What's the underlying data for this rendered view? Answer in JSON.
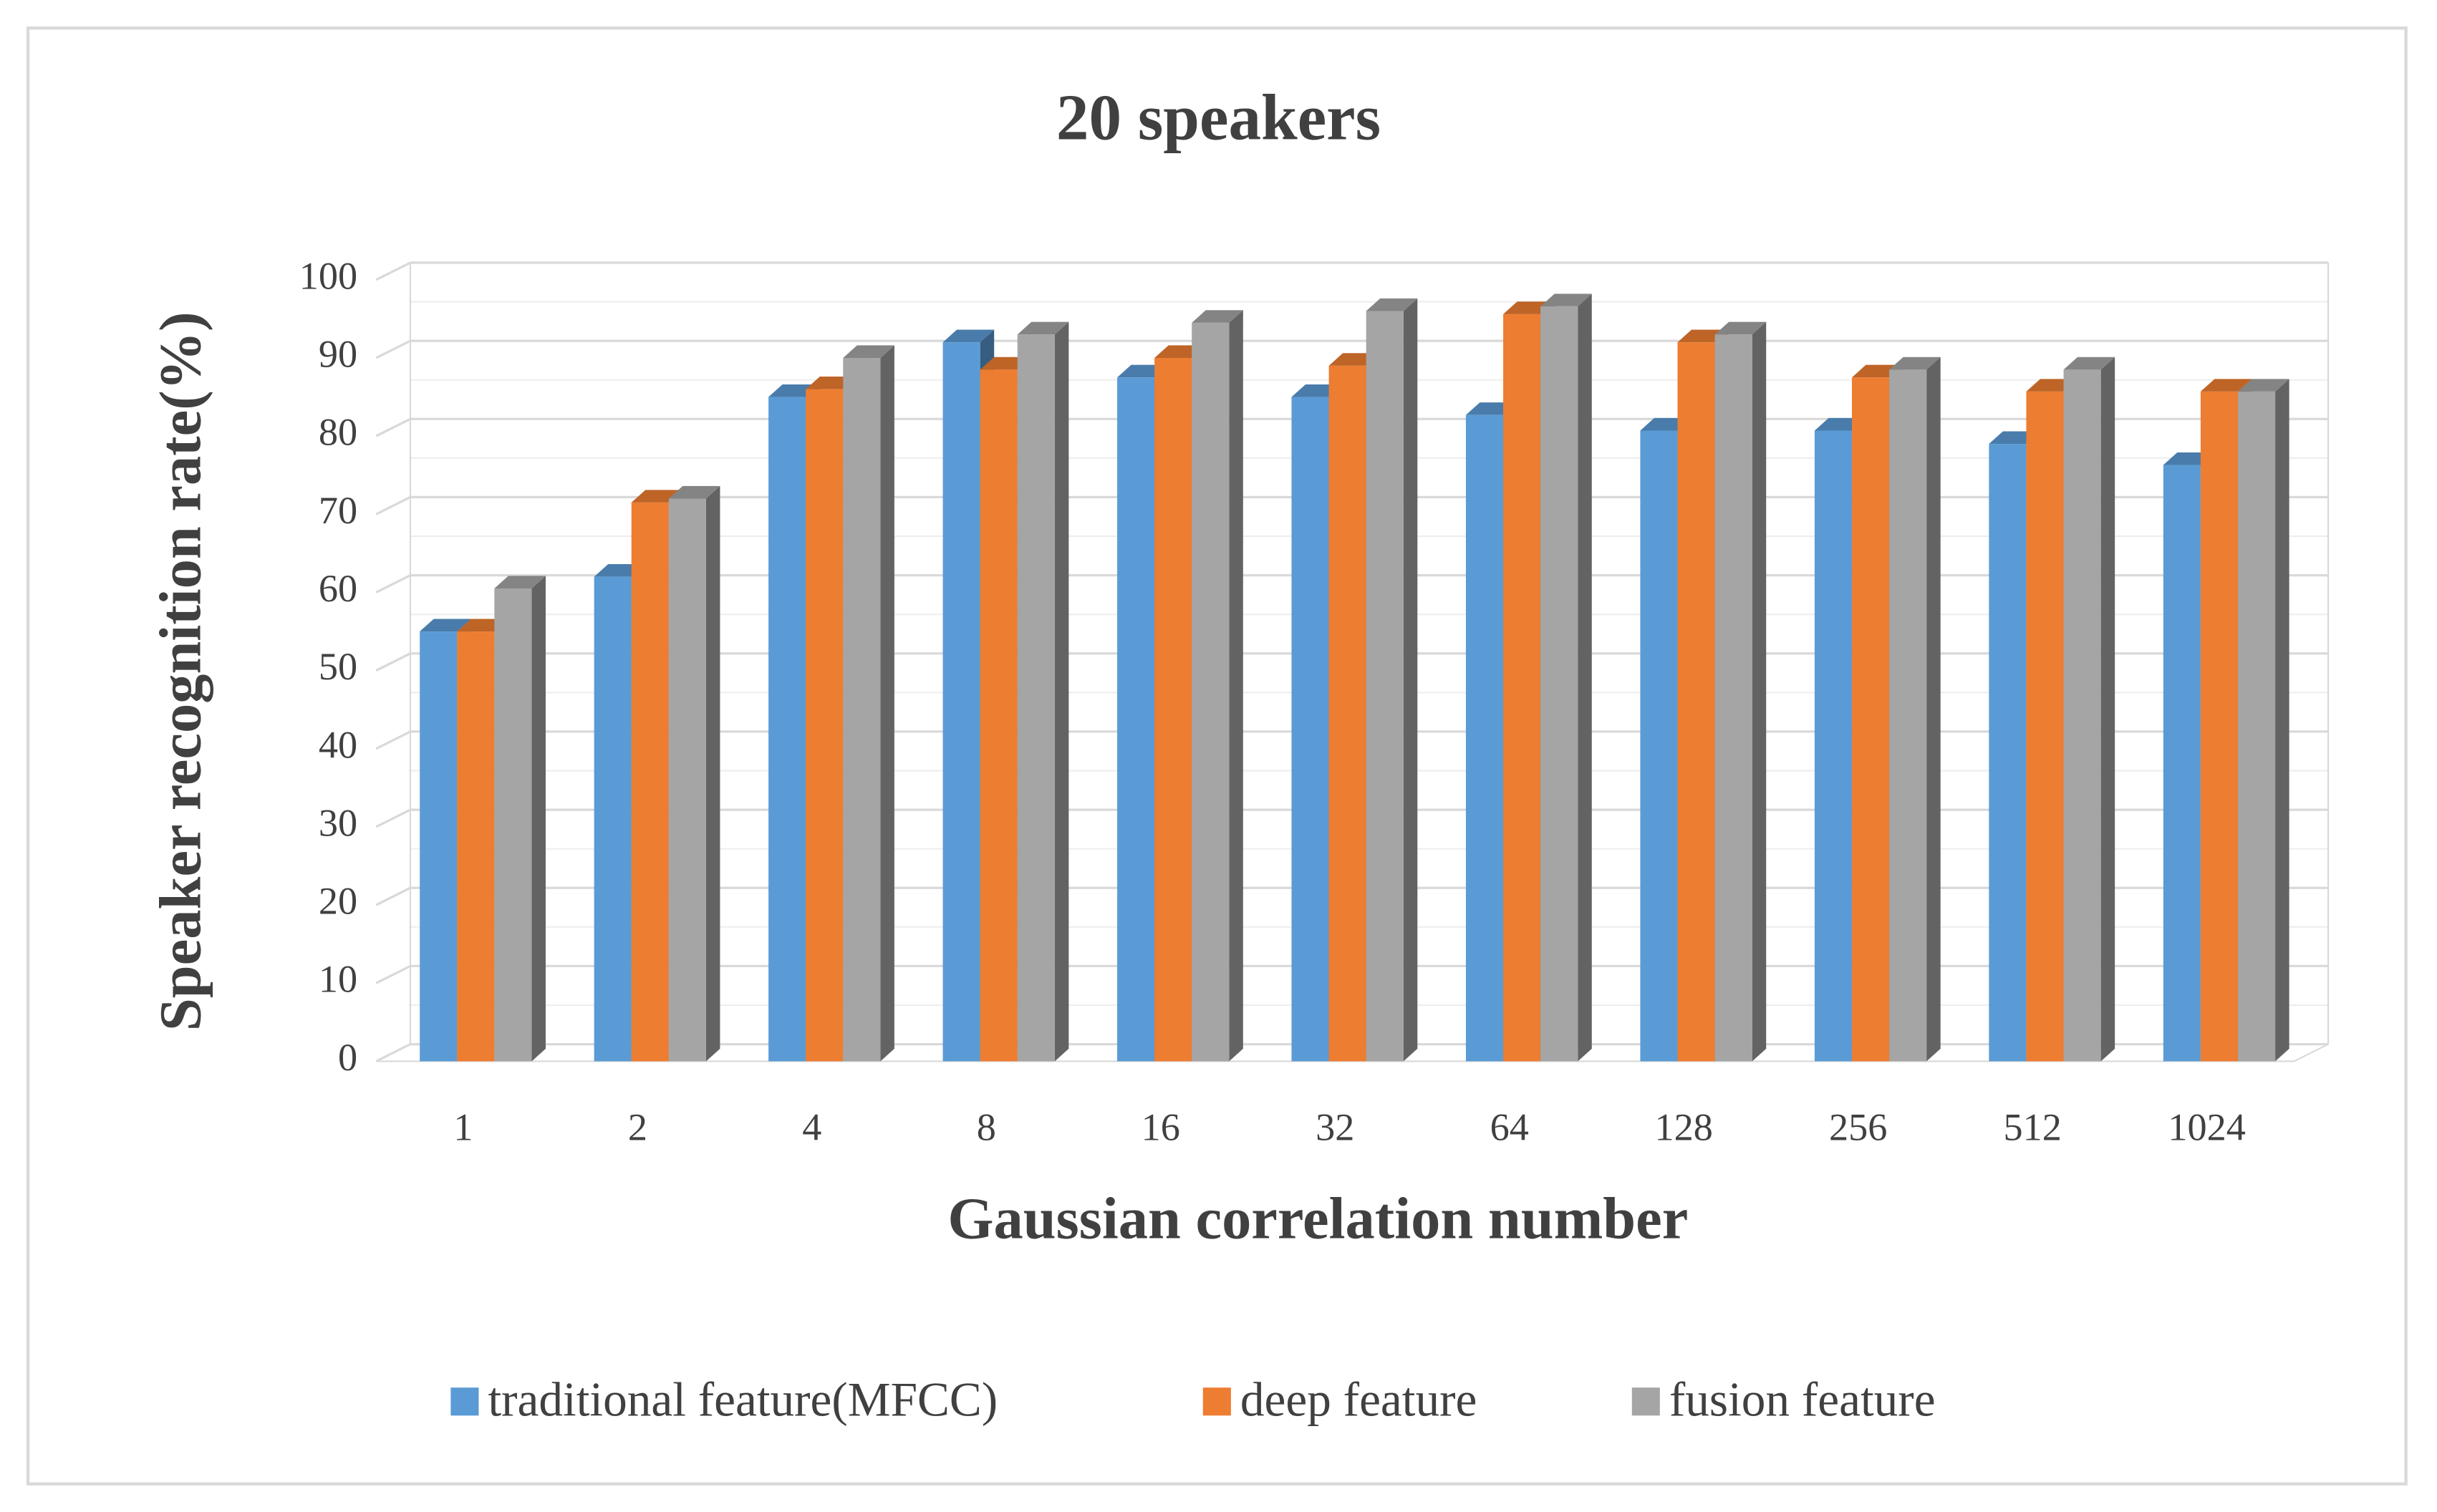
{
  "chart_data": {
    "type": "bar3d",
    "title": "20 speakers",
    "x_label": "Gaussian correlation number",
    "y_label": "Speaker recognition rate(%)",
    "categories": [
      "1",
      "2",
      "4",
      "8",
      "16",
      "32",
      "64",
      "128",
      "256",
      "512",
      "1024"
    ],
    "series": [
      {
        "name": "traditional feature(MFCC)",
        "color": "#5b9bd5",
        "values": [
          55,
          62,
          85,
          92,
          87.5,
          85,
          82.7,
          80.7,
          80.7,
          79,
          76.3
        ]
      },
      {
        "name": "deep feature",
        "color": "#ed7d31",
        "values": [
          55,
          71.5,
          86,
          88.5,
          90,
          89,
          95.6,
          92,
          87.5,
          85.7,
          85.7
        ]
      },
      {
        "name": "fusion feature",
        "color": "#a5a5a5",
        "values": [
          60.5,
          72,
          90,
          93,
          94.5,
          96,
          96.6,
          93,
          88.5,
          88.5,
          85.7
        ]
      }
    ],
    "ylim": [
      0,
      100
    ],
    "yticks": [
      0,
      10,
      20,
      30,
      40,
      50,
      60,
      70,
      80,
      90,
      100
    ],
    "grid": true,
    "legend": "bottom"
  }
}
